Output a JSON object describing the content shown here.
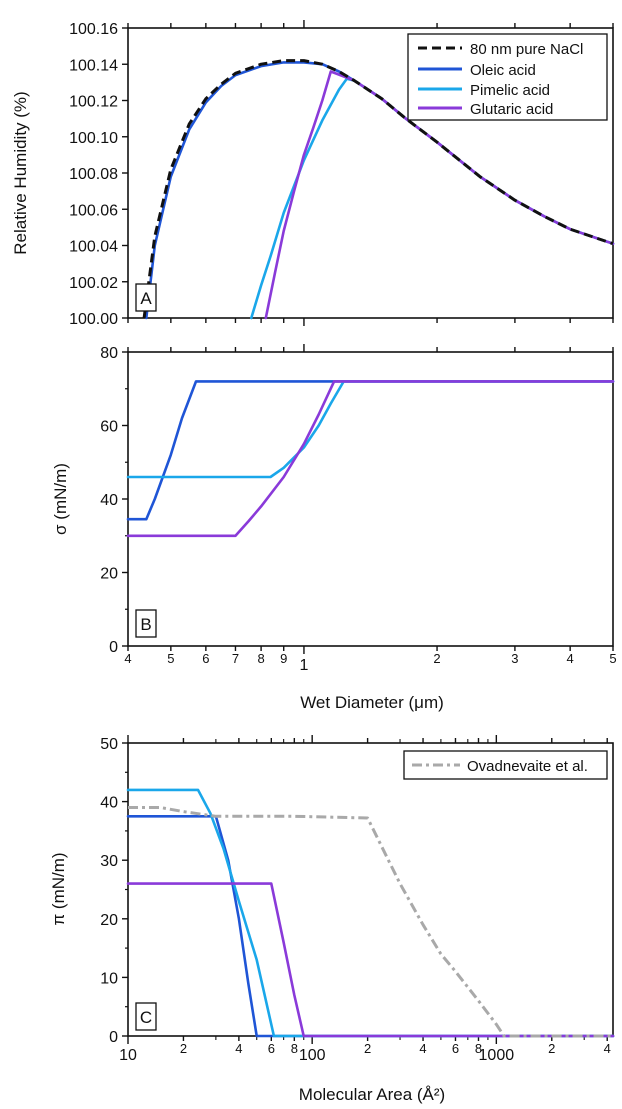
{
  "colors": {
    "pure_nacl": "#111111",
    "oleic": "#1f55d6",
    "pimelic": "#1aa7ea",
    "glutaric": "#8a3ad9",
    "ovadnevaite": "#a9a9a9",
    "axis": "#111111"
  },
  "chart_data": [
    {
      "panel_label": "A",
      "type": "line",
      "xscale": "log",
      "xlim": [
        0.4,
        5
      ],
      "ylim": [
        100.0,
        100.16
      ],
      "ylabel": "Relative Humidity (%)",
      "xlabel": "",
      "x_tick_labels": [],
      "y_tick_labels": [
        "100.00",
        "100.02",
        "100.04",
        "100.06",
        "100.08",
        "100.10",
        "100.12",
        "100.14",
        "100.16"
      ],
      "legend_position": "top-right",
      "series": [
        {
          "name": "80 nm pure NaCl",
          "color_key": "pure_nacl",
          "style": "dashed",
          "x": [
            0.435,
            0.46,
            0.5,
            0.55,
            0.6,
            0.65,
            0.7,
            0.8,
            0.9,
            1.0,
            1.1,
            1.2,
            1.3,
            1.5,
            1.7,
            2.0,
            2.5,
            3.0,
            3.5,
            4.0,
            5.0
          ],
          "y": [
            100.0,
            100.045,
            100.082,
            100.107,
            100.121,
            100.129,
            100.135,
            100.14,
            100.142,
            100.142,
            100.14,
            100.136,
            100.131,
            100.121,
            100.11,
            100.097,
            100.078,
            100.065,
            100.056,
            100.049,
            100.041
          ]
        },
        {
          "name": "Oleic acid",
          "color_key": "oleic",
          "style": "solid",
          "x": [
            0.44,
            0.46,
            0.5,
            0.55,
            0.6,
            0.65,
            0.7,
            0.8,
            0.9,
            1.0,
            1.1,
            1.2,
            1.3,
            1.5,
            1.7,
            2.0,
            2.5,
            3.0,
            3.5,
            4.0,
            5.0
          ],
          "y": [
            100.0,
            100.04,
            100.078,
            100.104,
            100.119,
            100.128,
            100.134,
            100.139,
            100.141,
            100.141,
            100.14,
            100.136,
            100.131,
            100.121,
            100.11,
            100.097,
            100.078,
            100.065,
            100.056,
            100.049,
            100.041
          ]
        },
        {
          "name": "Pimelic acid",
          "color_key": "pimelic",
          "style": "solid",
          "x": [
            0.76,
            0.8,
            0.84,
            0.9,
            1.0,
            1.1,
            1.2,
            1.25,
            1.3,
            1.5,
            1.7,
            2.0,
            2.5,
            3.0,
            3.5,
            4.0,
            5.0
          ],
          "y": [
            100.0,
            100.018,
            100.034,
            100.058,
            100.087,
            100.109,
            100.126,
            100.132,
            100.131,
            100.121,
            100.11,
            100.097,
            100.078,
            100.065,
            100.056,
            100.049,
            100.041
          ]
        },
        {
          "name": "Glutaric acid",
          "color_key": "glutaric",
          "style": "solid",
          "x": [
            0.82,
            0.86,
            0.9,
            0.95,
            1.0,
            1.05,
            1.1,
            1.15,
            1.3,
            1.5,
            1.7,
            2.0,
            2.5,
            3.0,
            3.5,
            4.0,
            5.0
          ],
          "y": [
            100.0,
            100.025,
            100.048,
            100.07,
            100.09,
            100.105,
            100.12,
            100.136,
            100.131,
            100.121,
            100.11,
            100.097,
            100.078,
            100.065,
            100.056,
            100.049,
            100.041
          ]
        }
      ]
    },
    {
      "panel_label": "B",
      "type": "line",
      "xscale": "log",
      "xlim": [
        0.4,
        5
      ],
      "ylim": [
        0,
        80
      ],
      "ylabel": "σ (mN/m)",
      "xlabel": "Wet Diameter (μm)",
      "x_tick_labels": [
        "4",
        "5",
        "6",
        "7",
        "8",
        "9",
        "1",
        "2",
        "3",
        "4",
        "5"
      ],
      "y_tick_labels": [
        "0",
        "20",
        "40",
        "60",
        "80"
      ],
      "series": [
        {
          "name": "Oleic acid",
          "color_key": "oleic",
          "style": "solid",
          "x": [
            0.4,
            0.44,
            0.46,
            0.5,
            0.53,
            0.57,
            1.2,
            5.0
          ],
          "y": [
            34.5,
            34.5,
            40,
            52,
            62,
            72,
            72,
            72
          ]
        },
        {
          "name": "Pimelic acid",
          "color_key": "pimelic",
          "style": "solid",
          "x": [
            0.4,
            0.84,
            0.9,
            1.0,
            1.08,
            1.15,
            1.23,
            5.0
          ],
          "y": [
            46,
            46,
            48.5,
            54,
            60,
            66,
            72,
            72
          ]
        },
        {
          "name": "Glutaric acid",
          "color_key": "glutaric",
          "style": "solid",
          "x": [
            0.4,
            0.7,
            0.75,
            0.8,
            0.9,
            1.0,
            1.08,
            1.17,
            5.0
          ],
          "y": [
            30,
            30,
            34,
            38,
            46,
            55,
            63,
            72,
            72
          ]
        }
      ]
    },
    {
      "panel_label": "C",
      "type": "line",
      "xscale": "log",
      "xlim": [
        10,
        4300
      ],
      "ylim": [
        0,
        50
      ],
      "ylabel": "π (mN/m)",
      "xlabel": "Molecular Area (Å²)",
      "x_tick_labels": [
        "10",
        "2",
        "4",
        "6",
        "8",
        "100",
        "2",
        "4",
        "6",
        "8",
        "1000",
        "2",
        "4"
      ],
      "y_tick_labels": [
        "0",
        "10",
        "20",
        "30",
        "40",
        "50"
      ],
      "legend_position": "top-right",
      "series": [
        {
          "name": "",
          "color_key": "oleic",
          "style": "solid",
          "x": [
            10,
            30,
            35,
            40,
            45,
            50,
            4300
          ],
          "y": [
            37.5,
            37.5,
            30,
            20,
            9,
            0,
            0
          ]
        },
        {
          "name": "",
          "color_key": "pimelic",
          "style": "solid",
          "x": [
            10,
            24,
            28,
            33,
            40,
            50,
            62,
            4300
          ],
          "y": [
            42,
            42,
            38,
            32,
            23,
            13,
            0,
            0
          ]
        },
        {
          "name": "",
          "color_key": "glutaric",
          "style": "solid",
          "x": [
            10,
            60,
            70,
            80,
            90,
            4300
          ],
          "y": [
            26,
            26,
            16,
            7,
            0,
            0
          ]
        },
        {
          "name": "Ovadnevaite et al.",
          "color_key": "ovadnevaite",
          "style": "dashdot",
          "x": [
            10,
            15,
            20,
            30,
            80,
            200,
            250,
            300,
            400,
            500,
            600,
            800,
            1000,
            1100,
            4300
          ],
          "y": [
            39,
            39,
            38.3,
            37.5,
            37.5,
            37.2,
            31,
            26,
            19,
            14,
            11,
            6,
            2,
            0,
            0
          ]
        }
      ]
    }
  ]
}
